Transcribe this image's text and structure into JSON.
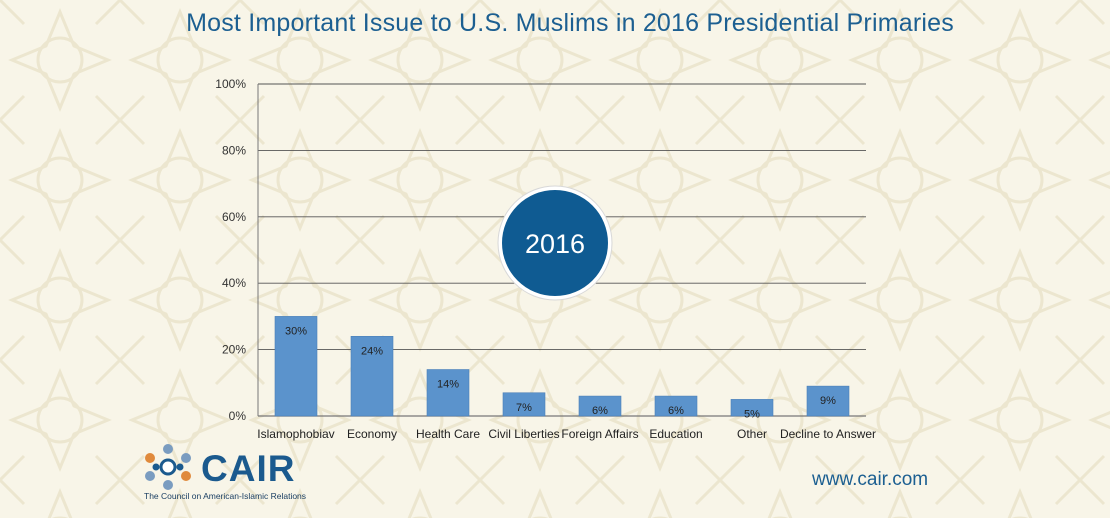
{
  "title": "Most Important Issue to U.S. Muslims in 2016 Presidential Primaries",
  "badge": {
    "label": "2016",
    "color": "#0f5b92"
  },
  "colors": {
    "bar": "#5b93cc",
    "grid": "#555555",
    "title": "#1c5f91"
  },
  "chart_data": {
    "type": "bar",
    "title": "Most Important Issue to U.S. Muslims in 2016 Presidential Primaries",
    "categories": [
      "Islamophobiav",
      "Economy",
      "Health Care",
      "Civil Liberties",
      "Foreign Affairs",
      "Education",
      "Other",
      "Decline to Answer"
    ],
    "values": [
      30,
      24,
      14,
      7,
      6,
      6,
      5,
      9
    ],
    "value_labels": [
      "30%",
      "24%",
      "14%",
      "7%",
      "6%",
      "6%",
      "5%",
      "9%"
    ],
    "ylim": [
      0,
      100
    ],
    "yticks": [
      0,
      20,
      40,
      60,
      80,
      100
    ],
    "ytick_labels": [
      "0%",
      "20%",
      "40%",
      "60%",
      "80%",
      "100%"
    ],
    "grid": true,
    "xlabel": "",
    "ylabel": ""
  },
  "logo": {
    "name": "CAIR",
    "subtitle": "The Council on American-Islamic Relations",
    "icon": "cair-star-icon"
  },
  "website": "www.cair.com"
}
